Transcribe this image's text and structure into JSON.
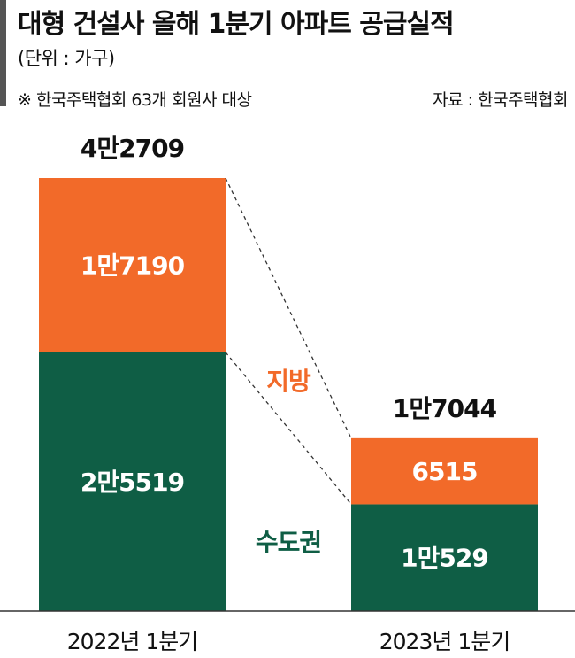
{
  "header": {
    "title": "대형 건설사 올해 1분기 아파트 공급실적",
    "unit": "(단위 : 가구)",
    "note": "※ 한국주택협회 63개 회원사 대상",
    "source": "자료 : 한국주택협회"
  },
  "colors": {
    "capital_area": "#0f5e45",
    "provinces": "#f26a29",
    "axis": "#333333",
    "connector": "#333333"
  },
  "chart_data": {
    "type": "bar",
    "stacked": true,
    "title": "대형 건설사 올해 1분기 아파트 공급실적",
    "unit": "(단위 : 가구)",
    "categories": [
      "2022년 1분기",
      "2023년 1분기"
    ],
    "series": [
      {
        "name": "수도권",
        "values": [
          25519,
          10529
        ],
        "value_labels": [
          "2만5519",
          "1만529"
        ]
      },
      {
        "name": "지방",
        "values": [
          17190,
          6515
        ],
        "value_labels": [
          "1만7190",
          "6515"
        ]
      }
    ],
    "totals": [
      42709,
      17044
    ],
    "total_labels": [
      "4만2709",
      "1만7044"
    ],
    "ylim": [
      0,
      42709
    ],
    "grid": false,
    "legend": "inline labels between bars"
  }
}
